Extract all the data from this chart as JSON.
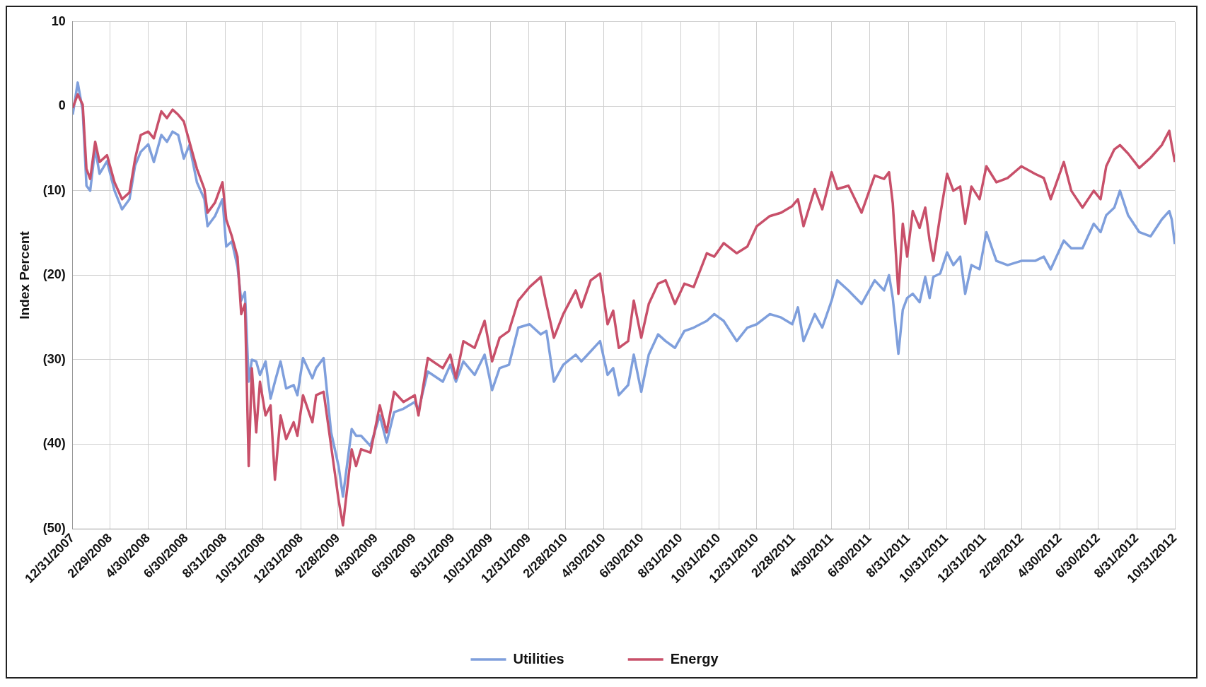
{
  "chart_data": {
    "type": "line",
    "ylabel": "Index Percent",
    "legend": "bottom",
    "grid": true,
    "marker": "none",
    "line_style": "solid",
    "x": [
      "2007-12-31",
      "2008-01-08",
      "2008-01-16",
      "2008-01-22",
      "2008-01-28",
      "2008-02-05",
      "2008-02-12",
      "2008-02-24",
      "2008-03-07",
      "2008-03-19",
      "2008-03-31",
      "2008-04-09",
      "2008-04-18",
      "2008-04-30",
      "2008-05-09",
      "2008-05-21",
      "2008-05-30",
      "2008-06-08",
      "2008-06-17",
      "2008-06-26",
      "2008-07-05",
      "2008-07-17",
      "2008-07-29",
      "2008-08-03",
      "2008-08-15",
      "2008-08-27",
      "2008-09-02",
      "2008-09-11",
      "2008-09-20",
      "2008-09-26",
      "2008-10-02",
      "2008-10-08",
      "2008-10-13",
      "2008-10-20",
      "2008-10-26",
      "2008-11-04",
      "2008-11-12",
      "2008-11-19",
      "2008-11-28",
      "2008-12-07",
      "2008-12-19",
      "2008-12-25",
      "2009-01-03",
      "2009-01-18",
      "2009-01-24",
      "2009-02-05",
      "2009-02-17",
      "2009-03-01",
      "2009-03-08",
      "2009-03-22",
      "2009-03-29",
      "2009-04-06",
      "2009-04-21",
      "2009-05-06",
      "2009-05-17",
      "2009-05-29",
      "2009-06-13",
      "2009-07-01",
      "2009-07-07",
      "2009-07-22",
      "2009-08-15",
      "2009-08-27",
      "2009-09-05",
      "2009-09-17",
      "2009-10-05",
      "2009-10-21",
      "2009-11-02",
      "2009-11-14",
      "2009-11-29",
      "2009-12-14",
      "2010-01-01",
      "2010-01-19",
      "2010-01-28",
      "2010-02-09",
      "2010-02-24",
      "2010-03-16",
      "2010-03-25",
      "2010-04-09",
      "2010-04-24",
      "2010-05-06",
      "2010-05-15",
      "2010-05-24",
      "2010-06-08",
      "2010-06-17",
      "2010-06-29",
      "2010-07-11",
      "2010-07-26",
      "2010-08-07",
      "2010-08-22",
      "2010-09-06",
      "2010-09-21",
      "2010-10-12",
      "2010-10-24",
      "2010-11-08",
      "2010-11-29",
      "2010-12-16",
      "2010-12-31",
      "2011-01-21",
      "2011-02-08",
      "2011-02-26",
      "2011-03-07",
      "2011-03-16",
      "2011-04-03",
      "2011-04-15",
      "2011-04-30",
      "2011-05-09",
      "2011-05-27",
      "2011-06-17",
      "2011-07-08",
      "2011-07-23",
      "2011-07-31",
      "2011-08-06",
      "2011-08-15",
      "2011-08-22",
      "2011-08-29",
      "2011-09-07",
      "2011-09-18",
      "2011-09-27",
      "2011-10-04",
      "2011-10-10",
      "2011-10-21",
      "2011-11-01",
      "2011-11-11",
      "2011-11-22",
      "2011-11-30",
      "2011-12-10",
      "2011-12-23",
      "2012-01-03",
      "2012-01-19",
      "2012-02-06",
      "2012-02-28",
      "2012-03-21",
      "2012-04-04",
      "2012-04-15",
      "2012-05-06",
      "2012-05-18",
      "2012-06-05",
      "2012-06-23",
      "2012-07-04",
      "2012-07-13",
      "2012-07-26",
      "2012-08-04",
      "2012-08-17",
      "2012-09-04",
      "2012-09-22",
      "2012-10-10",
      "2012-10-22",
      "2012-10-26",
      "2012-10-31"
    ],
    "xlim": [
      "2007-12-31",
      "2012-10-31"
    ],
    "xticks": [
      {
        "value": "2007-12-31",
        "label": "12/31/2007"
      },
      {
        "value": "2008-02-29",
        "label": "2/29/2008"
      },
      {
        "value": "2008-04-30",
        "label": "4/30/2008"
      },
      {
        "value": "2008-06-30",
        "label": "6/30/2008"
      },
      {
        "value": "2008-08-31",
        "label": "8/31/2008"
      },
      {
        "value": "2008-10-31",
        "label": "10/31/2008"
      },
      {
        "value": "2008-12-31",
        "label": "12/31/2008"
      },
      {
        "value": "2009-02-28",
        "label": "2/28/2009"
      },
      {
        "value": "2009-04-30",
        "label": "4/30/2009"
      },
      {
        "value": "2009-06-30",
        "label": "6/30/2009"
      },
      {
        "value": "2009-08-31",
        "label": "8/31/2009"
      },
      {
        "value": "2009-10-31",
        "label": "10/31/2009"
      },
      {
        "value": "2009-12-31",
        "label": "12/31/2009"
      },
      {
        "value": "2010-02-28",
        "label": "2/28/2010"
      },
      {
        "value": "2010-04-30",
        "label": "4/30/2010"
      },
      {
        "value": "2010-06-30",
        "label": "6/30/2010"
      },
      {
        "value": "2010-08-31",
        "label": "8/31/2010"
      },
      {
        "value": "2010-10-31",
        "label": "10/31/2010"
      },
      {
        "value": "2010-12-31",
        "label": "12/31/2010"
      },
      {
        "value": "2011-02-28",
        "label": "2/28/2011"
      },
      {
        "value": "2011-04-30",
        "label": "4/30/2011"
      },
      {
        "value": "2011-06-30",
        "label": "6/30/2011"
      },
      {
        "value": "2011-08-31",
        "label": "8/31/2011"
      },
      {
        "value": "2011-10-31",
        "label": "10/31/2011"
      },
      {
        "value": "2011-12-31",
        "label": "12/31/2011"
      },
      {
        "value": "2012-02-29",
        "label": "2/29/2012"
      },
      {
        "value": "2012-04-30",
        "label": "4/30/2012"
      },
      {
        "value": "2012-06-30",
        "label": "6/30/2012"
      },
      {
        "value": "2012-08-31",
        "label": "8/31/2012"
      },
      {
        "value": "2012-10-31",
        "label": "10/31/2012"
      }
    ],
    "ylim": [
      -50,
      10
    ],
    "yticks": [
      10,
      0,
      {
        "value": -10,
        "label": "(10)"
      },
      {
        "value": -20,
        "label": "(20)"
      },
      {
        "value": -30,
        "label": "(30)"
      },
      {
        "value": -40,
        "label": "(40)"
      },
      {
        "value": -50,
        "label": "(50)"
      }
    ],
    "series": [
      {
        "name": "Utilities",
        "color": "#7f9fdc",
        "values": [
          -1,
          2.8,
          -0.5,
          -9.4,
          -10,
          -5,
          -8,
          -6.5,
          -10,
          -12.2,
          -11,
          -7,
          -5.4,
          -4.5,
          -6.6,
          -3.4,
          -4.2,
          -3,
          -3.4,
          -6.2,
          -4.6,
          -9,
          -11,
          -14.2,
          -13,
          -11,
          -16.6,
          -16,
          -19,
          -23,
          -22,
          -32.6,
          -30,
          -30.2,
          -31.8,
          -30.2,
          -34.6,
          -32.6,
          -30.2,
          -33.4,
          -33,
          -34.2,
          -29.8,
          -32.2,
          -31,
          -29.8,
          -38.6,
          -42.6,
          -46.2,
          -38.2,
          -39,
          -39,
          -40.2,
          -36.6,
          -39.8,
          -36.2,
          -35.8,
          -35,
          -36,
          -31.4,
          -32.6,
          -30.6,
          -32.6,
          -30.2,
          -31.8,
          -29.4,
          -33.6,
          -31,
          -30.6,
          -26.2,
          -25.8,
          -27,
          -26.6,
          -32.6,
          -30.6,
          -29.4,
          -30.2,
          -29,
          -27.8,
          -31.8,
          -31,
          -34.2,
          -33,
          -29.4,
          -33.8,
          -29.4,
          -27,
          -27.8,
          -28.6,
          -26.6,
          -26.2,
          -25.4,
          -24.6,
          -25.4,
          -27.8,
          -26.2,
          -25.8,
          -24.6,
          -25,
          -25.8,
          -23.8,
          -27.8,
          -24.6,
          -26.2,
          -23,
          -20.6,
          -21.8,
          -23.4,
          -20.6,
          -21.8,
          -20,
          -22.7,
          -29.3,
          -24.1,
          -22.7,
          -22.2,
          -23.2,
          -20.2,
          -22.7,
          -20.2,
          -19.8,
          -17.3,
          -18.8,
          -17.8,
          -22.2,
          -18.8,
          -19.3,
          -14.9,
          -18.3,
          -18.8,
          -18.3,
          -18.3,
          -17.8,
          -19.3,
          -15.9,
          -16.8,
          -16.8,
          -13.9,
          -14.9,
          -12.9,
          -12,
          -10,
          -12.9,
          -14.9,
          -15.4,
          -13.4,
          -12.4,
          -13.4,
          -16.3
        ]
      },
      {
        "name": "Energy",
        "color": "#c8506a",
        "values": [
          -0.2,
          1.4,
          0.2,
          -7.4,
          -8.6,
          -4.2,
          -6.6,
          -5.8,
          -9,
          -11,
          -10.2,
          -6.2,
          -3.4,
          -3,
          -3.8,
          -0.6,
          -1.4,
          -0.4,
          -1,
          -1.8,
          -4.2,
          -7.4,
          -9.8,
          -12.6,
          -11.4,
          -9,
          -13.4,
          -15.4,
          -17.8,
          -24.6,
          -23.4,
          -42.6,
          -31,
          -38.6,
          -32.6,
          -36.6,
          -35.4,
          -44.2,
          -36.6,
          -39.4,
          -37.4,
          -39,
          -34.2,
          -37.4,
          -34.2,
          -33.8,
          -40.2,
          -46.6,
          -49.6,
          -40.6,
          -42.6,
          -40.6,
          -41,
          -35.4,
          -38.6,
          -33.8,
          -35,
          -34.2,
          -36.6,
          -29.8,
          -31,
          -29.4,
          -32.2,
          -27.8,
          -28.6,
          -25.4,
          -30.2,
          -27.4,
          -26.6,
          -23,
          -21.4,
          -20.2,
          -23.4,
          -27.4,
          -24.6,
          -21.8,
          -23.8,
          -20.6,
          -19.8,
          -25.8,
          -24.2,
          -28.6,
          -27.8,
          -23,
          -27.4,
          -23.4,
          -21,
          -20.6,
          -23.4,
          -21,
          -21.4,
          -17.4,
          -17.8,
          -16.2,
          -17.4,
          -16.6,
          -14.2,
          -13,
          -12.6,
          -11.8,
          -11,
          -14.2,
          -9.8,
          -12.2,
          -7.8,
          -9.8,
          -9.4,
          -12.6,
          -8.2,
          -8.6,
          -7.8,
          -11.5,
          -22.2,
          -13.9,
          -17.8,
          -12.4,
          -14.4,
          -12,
          -15.9,
          -18.3,
          -12.9,
          -8,
          -10,
          -9.5,
          -13.9,
          -9.5,
          -11,
          -7.1,
          -9,
          -8.5,
          -7.1,
          -8,
          -8.5,
          -11,
          -6.6,
          -10,
          -12,
          -10,
          -11,
          -7.1,
          -5.1,
          -4.6,
          -5.6,
          -7.3,
          -6.1,
          -4.6,
          -2.9,
          -4.6,
          -6.6
        ]
      }
    ]
  }
}
